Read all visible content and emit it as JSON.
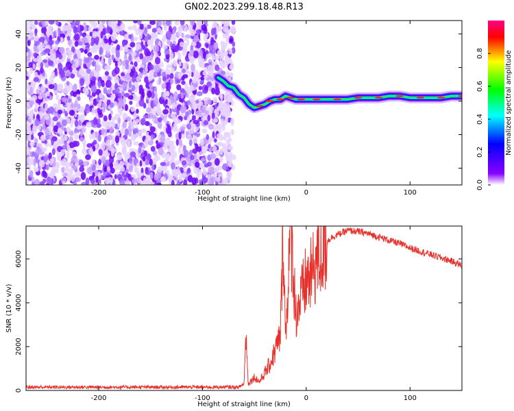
{
  "chart_data": [
    {
      "type": "heatmap",
      "title": "GN02.2023.299.18.48.R13",
      "xlabel": "Height of straight line (km)",
      "ylabel": "Frequency (Hz)",
      "xlim": [
        -270,
        150
      ],
      "ylim": [
        -50,
        48
      ],
      "xticks": [
        -200,
        -100,
        0,
        100
      ],
      "yticks": [
        -40,
        -20,
        0,
        20,
        40
      ],
      "noise_region": {
        "x": [
          -270,
          -70
        ],
        "y": [
          -50,
          48
        ]
      },
      "ridge": {
        "x": [
          -85,
          -80,
          -75,
          -70,
          -65,
          -60,
          -55,
          -50,
          -45,
          -40,
          -35,
          -30,
          -25,
          -20,
          -15,
          -10,
          -5,
          0,
          10,
          20,
          30,
          40,
          50,
          60,
          70,
          80,
          90,
          100,
          110,
          120,
          130,
          140,
          150
        ],
        "y": [
          14,
          12,
          9,
          8,
          4,
          2,
          -2,
          -4,
          -3,
          -2,
          0,
          1,
          1,
          3,
          2,
          1,
          1,
          1,
          1,
          1,
          1,
          1,
          2,
          2,
          2,
          3,
          3,
          2,
          2,
          2,
          2,
          3,
          3
        ]
      },
      "colorbar": {
        "label": "Normalized spectral amplitude",
        "range": [
          0.0,
          1.0
        ],
        "ticks": [
          0.0,
          0.2,
          0.4,
          0.6,
          0.8
        ],
        "tick_labels": [
          "0.0",
          "0.2",
          "0.4",
          "0.6",
          "0.8"
        ],
        "colors": [
          "#ffffff",
          "#8800ff",
          "#0000ff",
          "#00ffff",
          "#00ff00",
          "#ffff00",
          "#ff0000",
          "#ff0088"
        ]
      }
    },
    {
      "type": "line",
      "xlabel": "Height of straight line (km)",
      "ylabel": "SNR (10 * v/v)",
      "xlim": [
        -270,
        150
      ],
      "ylim": [
        0,
        7500
      ],
      "xticks": [
        -200,
        -100,
        0,
        100
      ],
      "yticks": [
        0,
        2000,
        4000,
        6000
      ],
      "color": "#e8312a",
      "series": [
        {
          "x": [
            -270,
            -200,
            -100,
            -65,
            -60,
            -58,
            -56,
            -50,
            -45,
            -40,
            -35,
            -30,
            -25,
            -22,
            -20,
            -18,
            -15,
            -10,
            -5,
            0,
            5,
            10,
            15,
            20,
            25,
            30,
            35,
            40,
            50,
            60,
            70,
            80,
            90,
            100,
            110,
            120,
            130,
            140,
            150
          ],
          "values": [
            150,
            150,
            150,
            150,
            300,
            2700,
            300,
            600,
            400,
            800,
            1200,
            1800,
            2500,
            7500,
            2200,
            4500,
            7500,
            3500,
            4200,
            5000,
            5200,
            6000,
            6200,
            6800,
            7000,
            7100,
            7200,
            7300,
            7250,
            7150,
            7000,
            6850,
            6700,
            6500,
            6350,
            6200,
            6050,
            5900,
            5700
          ]
        }
      ]
    }
  ]
}
